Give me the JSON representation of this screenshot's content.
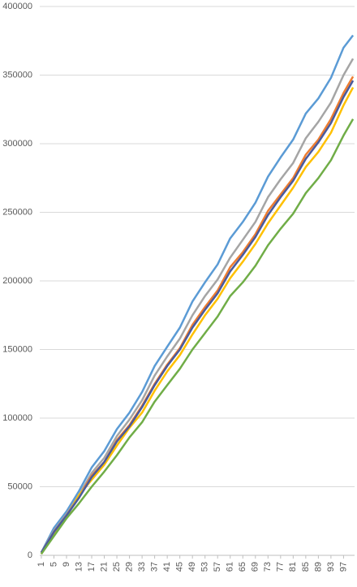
{
  "chart_data": {
    "type": "line",
    "x": [
      1,
      5,
      9,
      13,
      17,
      21,
      25,
      29,
      33,
      37,
      41,
      45,
      49,
      53,
      57,
      61,
      65,
      69,
      73,
      77,
      81,
      85,
      89,
      93,
      97,
      100
    ],
    "xlim": [
      0.5,
      100.5
    ],
    "xticks": [
      1,
      5,
      9,
      13,
      17,
      21,
      25,
      29,
      33,
      37,
      41,
      45,
      49,
      53,
      57,
      61,
      65,
      69,
      73,
      77,
      81,
      85,
      89,
      93,
      97
    ],
    "ylim": [
      0,
      400000
    ],
    "yticks": [
      0,
      50000,
      100000,
      150000,
      200000,
      250000,
      300000,
      350000,
      400000
    ],
    "grid": true,
    "series": [
      {
        "color": "#5b9bd5",
        "values": [
          2000,
          20000,
          32000,
          47000,
          64000,
          76000,
          92000,
          104000,
          119000,
          138000,
          152000,
          166000,
          185000,
          199000,
          212000,
          231000,
          243000,
          257000,
          276000,
          290000,
          303000,
          322000,
          333000,
          348000,
          370000,
          379000
        ]
      },
      {
        "color": "#a5a5a5",
        "values": [
          2000,
          18000,
          30000,
          44000,
          60000,
          71000,
          87000,
          99000,
          113000,
          131000,
          145000,
          158000,
          175000,
          189000,
          201000,
          217000,
          230000,
          243000,
          261000,
          274000,
          286000,
          304000,
          316000,
          330000,
          350000,
          362000
        ]
      },
      {
        "color": "#ed7d31",
        "values": [
          2000,
          17000,
          29000,
          43000,
          58000,
          68000,
          84000,
          95000,
          109000,
          125000,
          139000,
          151000,
          168000,
          181000,
          193000,
          210000,
          221000,
          234000,
          251000,
          263000,
          275000,
          292000,
          303000,
          318000,
          337000,
          349000
        ]
      },
      {
        "color": "#ffc000",
        "values": [
          1000,
          15000,
          28000,
          44000,
          55000,
          66000,
          80000,
          93000,
          104000,
          120000,
          134000,
          146000,
          161000,
          175000,
          187000,
          202000,
          214000,
          227000,
          242000,
          255000,
          268000,
          283000,
          294000,
          308000,
          328000,
          341000
        ]
      },
      {
        "color": "#4a5a9c",
        "values": [
          2000,
          17000,
          29000,
          42000,
          57000,
          68000,
          83000,
          94000,
          108000,
          124000,
          138000,
          150000,
          166000,
          179000,
          191000,
          207000,
          219000,
          232000,
          248000,
          261000,
          273000,
          289000,
          301000,
          315000,
          334000,
          346000
        ]
      },
      {
        "color": "#70ad47",
        "values": [
          1000,
          14000,
          27000,
          38000,
          50000,
          61000,
          73000,
          86000,
          97000,
          112000,
          124000,
          136000,
          150000,
          162000,
          174000,
          189000,
          199000,
          211000,
          226000,
          238000,
          249000,
          264000,
          275000,
          288000,
          306000,
          318000
        ]
      }
    ]
  }
}
